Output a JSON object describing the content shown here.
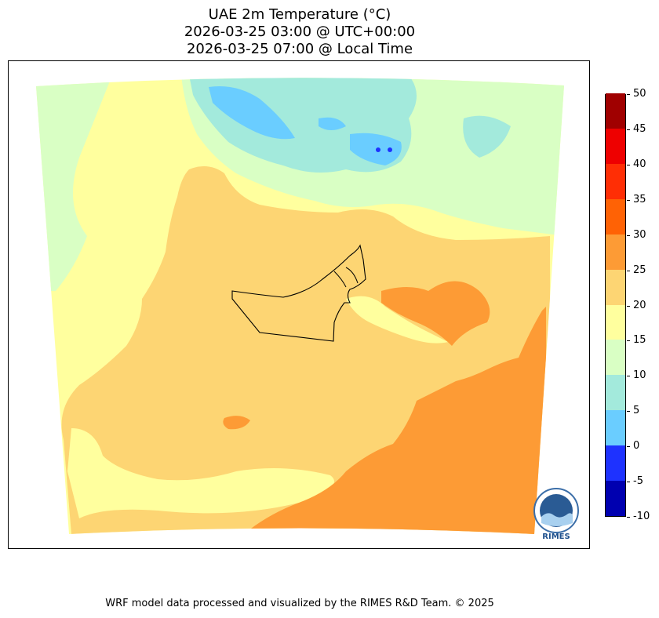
{
  "title": {
    "line1": "UAE 2m Temperature (°C)",
    "line2": "2026-03-25 03:00 @ UTC+00:00",
    "line3": "2026-03-25 07:00 @ Local Time"
  },
  "colorbar": {
    "levels": [
      -10,
      -5,
      0,
      5,
      10,
      15,
      20,
      25,
      30,
      35,
      40,
      45,
      50
    ],
    "colors": [
      "#0000b0",
      "#1e32ff",
      "#6acdff",
      "#a3eadc",
      "#d9ffc4",
      "#ffff9e",
      "#fdd573",
      "#fd9b35",
      "#ff6205",
      "#ff2e05",
      "#ee0000",
      "#a00000"
    ]
  },
  "logo": {
    "text": "RIMES"
  },
  "footer": "WRF model data processed and visualized by the RIMES R&D Team. © 2025"
}
